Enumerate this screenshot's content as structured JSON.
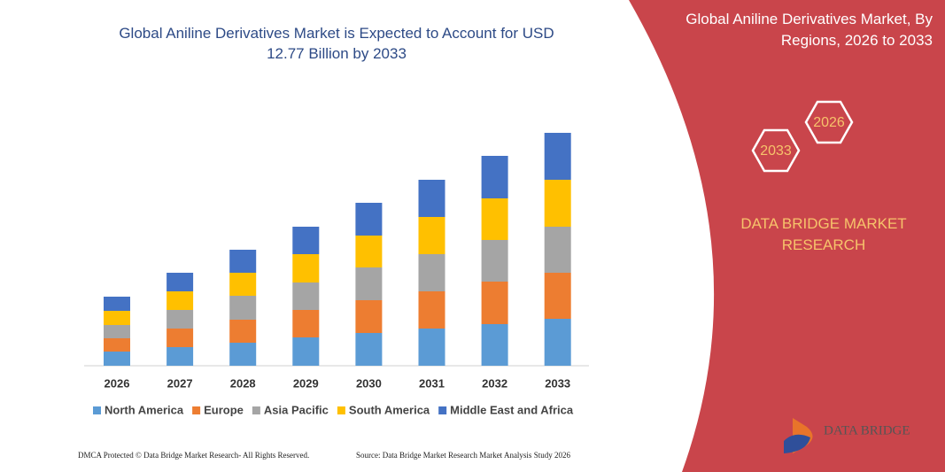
{
  "chart_data": {
    "type": "stacked-bar",
    "title": "Global Aniline Derivatives Market is Expected to Account for USD 12.77 Billion by 2033",
    "categories": [
      "2026",
      "2027",
      "2028",
      "2029",
      "2030",
      "2031",
      "2032",
      "2033"
    ],
    "series": [
      {
        "name": "North America",
        "color": "#5b9bd5",
        "values": [
          16,
          21,
          26,
          32,
          37,
          42,
          47,
          53
        ]
      },
      {
        "name": "Europe",
        "color": "#ed7d31",
        "values": [
          15,
          21,
          26,
          31,
          37,
          42,
          48,
          52
        ]
      },
      {
        "name": "Asia Pacific",
        "color": "#a5a5a5",
        "values": [
          15,
          21,
          27,
          31,
          37,
          42,
          47,
          52
        ]
      },
      {
        "name": "South America",
        "color": "#ffc000",
        "values": [
          16,
          21,
          26,
          32,
          36,
          42,
          47,
          53
        ]
      },
      {
        "name": "Middle East and Africa",
        "color": "#4472c4",
        "values": [
          16,
          21,
          26,
          31,
          37,
          42,
          48,
          53
        ]
      }
    ]
  },
  "panel": {
    "title": "Global Aniline Derivatives Market, By Regions, 2026 to 2033",
    "hexagons": [
      "2026",
      "2033"
    ],
    "brand": "DATA BRIDGE MARKET RESEARCH"
  },
  "logo": "DATA BRIDGE",
  "footer": {
    "left": "DMCA Protected © Data Bridge Market Research- All Rights Reserved.",
    "right": "Source: Data Bridge Market Research  Market Analysis Study 2026"
  }
}
